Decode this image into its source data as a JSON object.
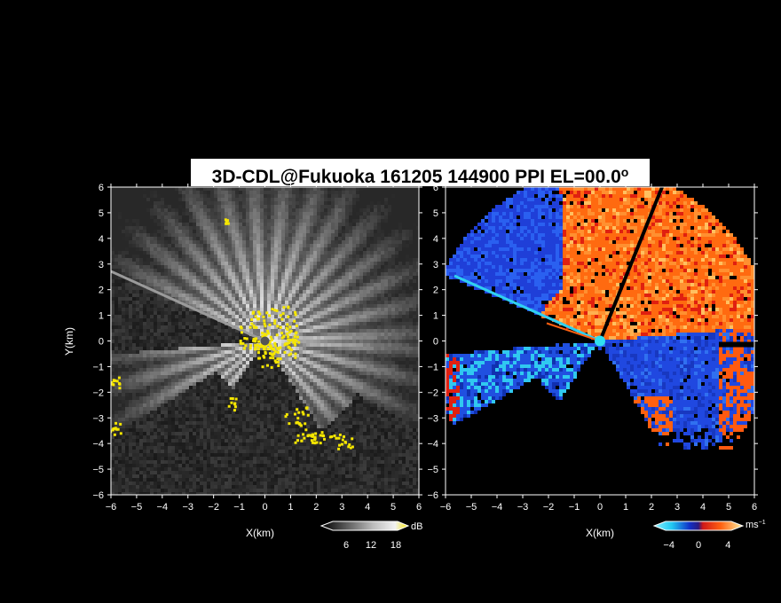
{
  "title": {
    "main": "3D-CDL@Fukuoka 161205 144900 PPI EL=00.0",
    "degree": "o"
  },
  "colors": {
    "background": "#000000",
    "snr_low": "#1a1a1a",
    "snr_high": "#e8e8e8",
    "snr_highlight": "#f5e600",
    "vel_negative_dark": "#1030c8",
    "vel_negative_light": "#30d8f0",
    "vel_positive": "#ff5a10",
    "vel_positive_light": "#ffb040",
    "vel_positive_dark": "#d01818"
  },
  "chart_data": [
    {
      "type": "heatmap",
      "name": "SNR panel",
      "xlabel": "X(km)",
      "ylabel": "Y(km)",
      "xlim": [
        -6,
        6
      ],
      "ylim": [
        -6,
        6
      ],
      "xticks": [
        "-6",
        "-5",
        "-4",
        "-3",
        "-2",
        "-1",
        "0",
        "1",
        "2",
        "3",
        "4",
        "5",
        "6"
      ],
      "yticks": [
        "-6",
        "-5",
        "-4",
        "-3",
        "-2",
        "-1",
        "0",
        "1",
        "2",
        "3",
        "4",
        "5",
        "6"
      ],
      "colorbar": {
        "unit": "dB",
        "ticks": [
          "6",
          "12",
          "18"
        ],
        "range": [
          0,
          21
        ]
      }
    },
    {
      "type": "heatmap",
      "name": "Doppler velocity panel",
      "xlabel": "X(km)",
      "ylabel": "",
      "xlim": [
        -6,
        6
      ],
      "ylim": [
        -6,
        6
      ],
      "xticks": [
        "-6",
        "-5",
        "-4",
        "-3",
        "-2",
        "-1",
        "0",
        "1",
        "2",
        "3",
        "4",
        "5",
        "6"
      ],
      "yticks": [
        "-6",
        "-5",
        "-4",
        "-3",
        "-2",
        "-1",
        "0",
        "1",
        "2",
        "3",
        "4",
        "5",
        "6"
      ],
      "colorbar": {
        "unit": "ms",
        "unit_exp": "−1",
        "ticks": [
          "−4",
          "0",
          "4"
        ],
        "range": [
          -6,
          6
        ]
      }
    }
  ]
}
